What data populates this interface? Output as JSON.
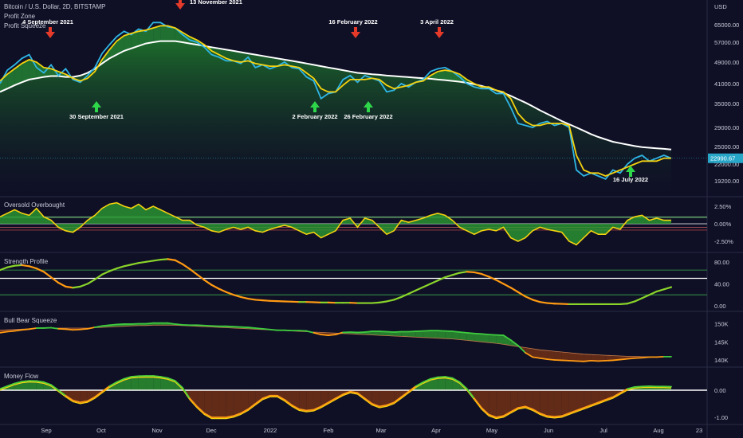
{
  "legend": {
    "symbol": "Bitcoin / U.S. Dollar, 2D, BITSTAMP",
    "line1": "Profit Zone",
    "line2": "Profit Squeeze"
  },
  "colors": {
    "background": "#0f1026",
    "green": "#2fbf3a",
    "yellow": "#f5d20f",
    "cyan": "#2fb6e6",
    "white": "#ffffff",
    "orange": "#ff9a12",
    "red": "#e53a2a",
    "brown": "#6b2f17",
    "price_tag": "#27a6c8",
    "axis_text": "#c8cad6"
  },
  "x_axis": {
    "labels": [
      "Sep",
      "Oct",
      "Nov",
      "Dec",
      "2022",
      "Feb",
      "Mar",
      "Apr",
      "May",
      "Jun",
      "Jul",
      "Aug",
      "23"
    ]
  },
  "chart_data": [
    {
      "id": "main",
      "type": "line",
      "title": "Bitcoin / U.S. Dollar, 2D, BITSTAMP",
      "ylabel": "USD",
      "y_ticks": [
        65000,
        57000,
        49000,
        41000,
        35000,
        29000,
        25000,
        22000,
        19200
      ],
      "y_tick_labels": [
        "65000.00",
        "57000.00",
        "49000.00",
        "41000.00",
        "35000.00",
        "29000.00",
        "25000.00",
        "22000.00",
        "19200.00"
      ],
      "last_price_label": "22990.67",
      "series": [
        {
          "role": "price",
          "values": [
            41000,
            46000,
            48000,
            50500,
            52000,
            47000,
            45000,
            48000,
            44000,
            46500,
            42500,
            41500,
            44000,
            47000,
            52500,
            56000,
            59500,
            62000,
            60500,
            63000,
            62000,
            66000,
            66000,
            64000,
            63500,
            60500,
            58000,
            57000,
            55000,
            52000,
            51000,
            49500,
            49500,
            48500,
            51000,
            47000,
            48000,
            46500,
            47500,
            49000,
            47000,
            46500,
            43500,
            42000,
            36500,
            38000,
            38500,
            42500,
            44000,
            41500,
            44000,
            43000,
            42000,
            38500,
            39000,
            41000,
            40000,
            41500,
            42500,
            45500,
            46500,
            47000,
            45500,
            43500,
            41000,
            40000,
            39500,
            39500,
            38000,
            38000,
            34000,
            30000,
            29500,
            29000,
            30000,
            30500,
            29500,
            30000,
            29000,
            21000,
            20000,
            20500,
            20000,
            19500,
            21000,
            20500,
            22000,
            23000,
            23500,
            22500,
            23000,
            23500,
            23000
          ]
        },
        {
          "role": "fast_ma",
          "values": [
            42000,
            44500,
            46500,
            48500,
            50000,
            49000,
            47000,
            46500,
            45500,
            44500,
            43000,
            42000,
            43000,
            45500,
            50000,
            54000,
            57500,
            60000,
            61000,
            62000,
            62500,
            63500,
            64500,
            64500,
            63500,
            61500,
            59500,
            58000,
            56000,
            53500,
            52000,
            50500,
            49500,
            49000,
            49500,
            48500,
            48000,
            47500,
            47500,
            48000,
            47500,
            47000,
            45000,
            43000,
            39500,
            38500,
            38500,
            40500,
            42500,
            42500,
            42500,
            43000,
            42500,
            40500,
            39500,
            40000,
            40500,
            41500,
            42000,
            44000,
            45500,
            46000,
            45500,
            44500,
            42500,
            41000,
            40000,
            40000,
            39000,
            38500,
            36500,
            32500,
            30500,
            29500,
            29500,
            30000,
            30000,
            30000,
            29500,
            23500,
            21000,
            20500,
            20500,
            20000,
            20500,
            21000,
            21500,
            22000,
            22500,
            22500,
            22500,
            23000,
            23000
          ]
        },
        {
          "role": "slow_ma",
          "values": [
            38500,
            39500,
            40500,
            41500,
            42500,
            43000,
            43500,
            43800,
            43800,
            43500,
            43500,
            44000,
            45000,
            46500,
            48500,
            50500,
            52000,
            53500,
            54500,
            55500,
            56500,
            57000,
            57500,
            57500,
            57500,
            57000,
            56500,
            56000,
            55500,
            55000,
            54500,
            54000,
            53500,
            53000,
            52500,
            52000,
            51500,
            51000,
            50500,
            50000,
            49500,
            49000,
            48500,
            48000,
            47500,
            47000,
            46500,
            46000,
            45500,
            45000,
            44800,
            44500,
            44300,
            44000,
            43800,
            43600,
            43400,
            43200,
            43000,
            42800,
            42500,
            42300,
            42000,
            41700,
            41300,
            40800,
            40300,
            39700,
            39000,
            38200,
            37300,
            36300,
            35300,
            34300,
            33300,
            32400,
            31500,
            30600,
            29800,
            29000,
            28300,
            27600,
            27000,
            26500,
            26000,
            25700,
            25400,
            25100,
            24900,
            24800,
            24700,
            24600,
            24500
          ]
        }
      ],
      "annotations": [
        {
          "text": "4 September 2021",
          "type": "top"
        },
        {
          "text": "13 November 2021",
          "type": "top"
        },
        {
          "text": "16 February 2022",
          "type": "top"
        },
        {
          "text": "3 April 2022",
          "type": "top"
        },
        {
          "text": "30 September 2021",
          "type": "bottom"
        },
        {
          "text": "2 February 2022",
          "type": "bottom"
        },
        {
          "text": "26 February 2022",
          "type": "bottom"
        },
        {
          "text": "16 July 2022",
          "type": "bottom"
        }
      ]
    },
    {
      "id": "overbought",
      "type": "area",
      "title": "Oversold Overbought",
      "y_ticks": [
        2.5,
        0,
        -2.5
      ],
      "y_tick_labels": [
        "2.50%",
        "0.00%",
        "-2.50%"
      ],
      "series": [
        {
          "name": "",
          "values": [
            1.0,
            1.5,
            2.0,
            1.5,
            1.2,
            2.2,
            1.0,
            0.5,
            -0.5,
            -1.0,
            -1.2,
            -0.5,
            0.5,
            1.2,
            2.2,
            2.8,
            3.0,
            2.5,
            2.2,
            2.8,
            2.0,
            2.5,
            2.0,
            1.5,
            1.0,
            0.5,
            0.5,
            -0.2,
            -0.5,
            -1.0,
            -1.2,
            -0.8,
            -0.5,
            -0.8,
            -0.5,
            -1.0,
            -1.2,
            -0.8,
            -0.5,
            -0.2,
            -0.5,
            -1.0,
            -1.5,
            -1.2,
            -2.0,
            -1.5,
            -1.0,
            0.5,
            0.8,
            -0.5,
            0.8,
            0.5,
            -0.5,
            -1.5,
            -1.0,
            0.5,
            0.2,
            0.5,
            0.8,
            1.2,
            1.5,
            1.2,
            0.5,
            -0.5,
            -1.0,
            -1.5,
            -1.0,
            -0.8,
            -1.0,
            -0.5,
            -2.0,
            -2.5,
            -2.0,
            -1.0,
            -0.5,
            -0.8,
            -1.0,
            -1.2,
            -2.5,
            -3.0,
            -2.0,
            -1.0,
            -1.5,
            -1.5,
            -0.5,
            -0.8,
            0.5,
            1.0,
            1.2,
            0.5,
            0.8,
            0.5,
            0.5
          ]
        }
      ]
    },
    {
      "id": "strength",
      "type": "line",
      "title": "Strength Profile",
      "y_ticks": [
        80,
        40,
        0
      ],
      "y_tick_labels": [
        "80.00",
        "40.00",
        "0.00"
      ],
      "reference_lines": [
        65,
        50,
        20
      ],
      "series": [
        {
          "name": "",
          "values": [
            65,
            70,
            73,
            74,
            72,
            68,
            62,
            52,
            42,
            35,
            33,
            35,
            40,
            48,
            57,
            63,
            68,
            72,
            75,
            78,
            80,
            82,
            84,
            85,
            83,
            76,
            67,
            57,
            47,
            38,
            31,
            25,
            20,
            16,
            13,
            11,
            10,
            9,
            8.5,
            8,
            7.5,
            7,
            7,
            6.5,
            6,
            6,
            5.5,
            5.5,
            5.5,
            5,
            5,
            5,
            6,
            8,
            11,
            16,
            22,
            28,
            34,
            40,
            46,
            52,
            56,
            60,
            62,
            61,
            58,
            53,
            47,
            40,
            33,
            25,
            17,
            11,
            7,
            5,
            4,
            3.5,
            3,
            3,
            3,
            3,
            3,
            3,
            3,
            3,
            4,
            8,
            14,
            20,
            26,
            30,
            34
          ]
        }
      ]
    },
    {
      "id": "squeeze",
      "type": "area",
      "title": "Bull Bear Squeeze",
      "y_ticks": [
        150,
        145,
        140
      ],
      "y_tick_labels": [
        "150K",
        "145K",
        "140K"
      ],
      "series": [
        {
          "role": "fast",
          "values": [
            147.5,
            147.8,
            148.0,
            148.3,
            148.5,
            148.8,
            148.8,
            148.9,
            148.6,
            148.5,
            148.3,
            148.4,
            148.6,
            149.0,
            149.4,
            149.6,
            149.8,
            149.9,
            149.9,
            150.0,
            150.0,
            150.2,
            150.2,
            150.2,
            149.9,
            149.7,
            149.6,
            149.6,
            149.5,
            149.4,
            149.3,
            149.3,
            149.2,
            149.1,
            149.0,
            148.8,
            148.6,
            148.4,
            148.2,
            148.2,
            148.1,
            148.1,
            148.0,
            147.5,
            147.0,
            146.8,
            147.0,
            147.6,
            147.7,
            147.6,
            147.7,
            147.9,
            147.9,
            147.8,
            147.7,
            147.8,
            147.8,
            147.9,
            148.0,
            148.1,
            148.1,
            148.0,
            147.9,
            147.7,
            147.5,
            147.3,
            147.2,
            147.0,
            146.9,
            146.8,
            145.5,
            144.0,
            142.0,
            140.8,
            140.5,
            140.2,
            140.0,
            139.9,
            139.8,
            139.7,
            139.6,
            139.8,
            139.7,
            139.8,
            139.9,
            140.1,
            140.3,
            140.5,
            140.6,
            140.8,
            140.8,
            140.9,
            140.9
          ]
        },
        {
          "role": "slow",
          "values": [
            148.2,
            148.3,
            148.4,
            148.5,
            148.6,
            148.7,
            148.8,
            148.8,
            148.8,
            148.8,
            148.8,
            148.8,
            148.8,
            148.9,
            149.0,
            149.1,
            149.2,
            149.3,
            149.4,
            149.5,
            149.5,
            149.6,
            149.6,
            149.6,
            149.6,
            149.5,
            149.4,
            149.3,
            149.2,
            149.1,
            149.0,
            148.9,
            148.8,
            148.7,
            148.6,
            148.5,
            148.4,
            148.3,
            148.2,
            148.1,
            148.0,
            147.9,
            147.8,
            147.7,
            147.6,
            147.5,
            147.4,
            147.3,
            147.2,
            147.1,
            147.0,
            146.9,
            146.8,
            146.7,
            146.6,
            146.5,
            146.4,
            146.3,
            146.2,
            146.1,
            146.0,
            145.9,
            145.8,
            145.6,
            145.4,
            145.2,
            145.0,
            144.8,
            144.6,
            144.3,
            144.0,
            143.7,
            143.4,
            143.1,
            142.8,
            142.6,
            142.4,
            142.2,
            142.0,
            141.8,
            141.6,
            141.5,
            141.4,
            141.3,
            141.2,
            141.1,
            141.0,
            141.0,
            140.9,
            140.9,
            140.9,
            140.9,
            140.9
          ]
        }
      ]
    },
    {
      "id": "moneyflow",
      "type": "area",
      "title": "Money Flow",
      "y_ticks": [
        0,
        -1
      ],
      "y_tick_labels": [
        "0.00",
        "-1.00"
      ],
      "series": [
        {
          "name": "",
          "values": [
            0.05,
            0.15,
            0.25,
            0.32,
            0.35,
            0.34,
            0.3,
            0.2,
            0.0,
            -0.2,
            -0.38,
            -0.45,
            -0.4,
            -0.25,
            -0.05,
            0.15,
            0.3,
            0.42,
            0.5,
            0.52,
            0.53,
            0.53,
            0.5,
            0.45,
            0.35,
            0.1,
            -0.3,
            -0.6,
            -0.85,
            -1.0,
            -1.0,
            -1.0,
            -0.95,
            -0.85,
            -0.7,
            -0.5,
            -0.3,
            -0.2,
            -0.2,
            -0.35,
            -0.55,
            -0.7,
            -0.75,
            -0.72,
            -0.6,
            -0.45,
            -0.3,
            -0.15,
            -0.05,
            -0.1,
            -0.3,
            -0.5,
            -0.6,
            -0.55,
            -0.45,
            -0.25,
            -0.05,
            0.15,
            0.3,
            0.42,
            0.48,
            0.5,
            0.45,
            0.3,
            0.05,
            -0.3,
            -0.65,
            -0.9,
            -1.0,
            -0.95,
            -0.8,
            -0.65,
            -0.6,
            -0.7,
            -0.85,
            -0.95,
            -0.98,
            -0.95,
            -0.85,
            -0.75,
            -0.65,
            -0.55,
            -0.45,
            -0.35,
            -0.25,
            -0.1,
            0.05,
            0.12,
            0.14,
            0.15,
            0.14,
            0.14,
            0.13
          ]
        }
      ]
    }
  ]
}
